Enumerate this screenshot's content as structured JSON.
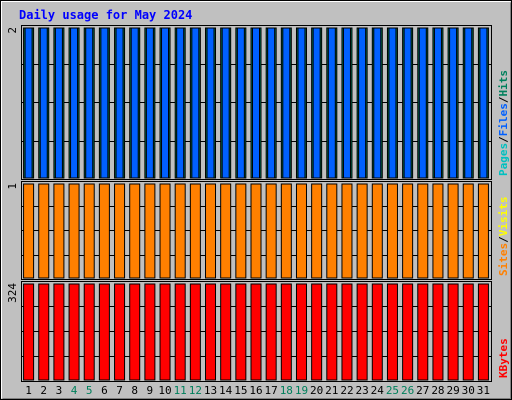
{
  "chart_data": {
    "type": "bar",
    "title": "Daily usage for May 2024",
    "categories": [
      "1",
      "2",
      "3",
      "4",
      "5",
      "6",
      "7",
      "8",
      "9",
      "10",
      "11",
      "12",
      "13",
      "14",
      "15",
      "16",
      "17",
      "18",
      "19",
      "20",
      "21",
      "22",
      "23",
      "24",
      "25",
      "26",
      "27",
      "28",
      "29",
      "30",
      "31"
    ],
    "weekend_days": [
      "4",
      "5",
      "11",
      "12",
      "18",
      "19",
      "25",
      "26"
    ],
    "panels": [
      {
        "name": "hits-files-pages",
        "ytick": "2",
        "ymax": 2,
        "legend": [
          {
            "label": "Pages",
            "color": "#00c0c0"
          },
          {
            "label": "/",
            "color": "#000000"
          },
          {
            "label": "Files",
            "color": "#0060ff"
          },
          {
            "label": "/",
            "color": "#000000"
          },
          {
            "label": "Hits",
            "color": "#00805c"
          }
        ],
        "series": [
          {
            "name": "Hits",
            "color": "#00805c",
            "values": [
              2,
              2,
              2,
              2,
              2,
              2,
              2,
              2,
              2,
              2,
              2,
              2,
              2,
              2,
              2,
              2,
              2,
              2,
              2,
              2,
              2,
              2,
              2,
              2,
              2,
              2,
              2,
              2,
              2,
              2,
              2
            ]
          },
          {
            "name": "Files",
            "color": "#0060ff",
            "values": [
              2,
              2,
              2,
              2,
              2,
              2,
              2,
              2,
              2,
              2,
              2,
              2,
              2,
              2,
              2,
              2,
              2,
              2,
              2,
              2,
              2,
              2,
              2,
              2,
              2,
              2,
              2,
              2,
              2,
              2,
              2
            ]
          },
          {
            "name": "Pages",
            "color": "#00c0c0",
            "values": [
              0,
              0,
              0,
              0,
              0,
              0,
              0,
              0,
              0,
              0,
              0,
              0,
              0,
              0,
              0,
              0,
              0,
              0,
              0,
              0,
              0,
              0,
              0,
              0,
              0,
              0,
              0,
              0,
              0,
              0,
              0
            ]
          }
        ]
      },
      {
        "name": "visits-sites",
        "ytick": "1",
        "ymax": 1,
        "legend": [
          {
            "label": "Sites",
            "color": "#ff8000"
          },
          {
            "label": "/",
            "color": "#000000"
          },
          {
            "label": "Visits",
            "color": "#ffff00"
          }
        ],
        "series": [
          {
            "name": "Visits",
            "color": "#ffff00",
            "values": [
              0,
              0,
              0,
              0,
              0,
              0,
              0,
              0,
              0,
              0,
              0,
              0,
              0,
              0,
              0,
              0,
              0,
              0,
              0,
              0,
              0,
              0,
              0,
              0,
              0,
              0,
              0,
              0,
              0,
              0,
              0
            ]
          },
          {
            "name": "Sites",
            "color": "#ff8000",
            "values": [
              1,
              1,
              1,
              1,
              1,
              1,
              1,
              1,
              1,
              1,
              1,
              1,
              1,
              1,
              1,
              1,
              1,
              1,
              1,
              1,
              1,
              1,
              1,
              1,
              1,
              1,
              1,
              1,
              1,
              1,
              1
            ]
          }
        ]
      },
      {
        "name": "kbytes",
        "ytick": "324",
        "ymax": 324,
        "legend": [
          {
            "label": "KBytes",
            "color": "#ff0000"
          }
        ],
        "series": [
          {
            "name": "KBytes",
            "color": "#ff0000",
            "values": [
              324,
              324,
              324,
              324,
              324,
              324,
              324,
              324,
              324,
              324,
              324,
              324,
              324,
              324,
              324,
              324,
              324,
              324,
              324,
              324,
              324,
              324,
              324,
              324,
              324,
              324,
              324,
              324,
              324,
              324,
              324
            ]
          }
        ]
      }
    ],
    "colors": {
      "background": "#c0c0c0",
      "plot_background": "#c0c0c0",
      "grid": "#000000",
      "title": "#0000ff",
      "weekday_label": "#000000",
      "weekend_label": "#00805c"
    },
    "grid": true,
    "legend_placement": "right-vertical"
  }
}
